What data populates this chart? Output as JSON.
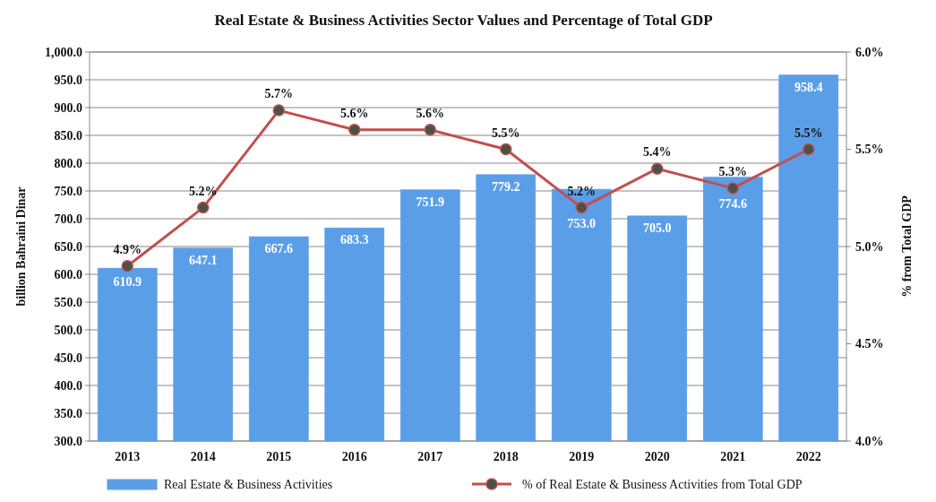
{
  "chart_data": {
    "type": "bar",
    "title": "Real Estate & Business Activities Sector Values and Percentage of Total GDP",
    "ylabel": "billion Bahraini Dinar",
    "y2label": "% from Total GDP",
    "categories": [
      "2013",
      "2014",
      "2015",
      "2016",
      "2017",
      "2018",
      "2019",
      "2020",
      "2021",
      "2022"
    ],
    "series": [
      {
        "name": "Real Estate & Business Activities",
        "color": "#5b9ee8",
        "values": [
          610.9,
          647.1,
          667.6,
          683.3,
          751.9,
          779.2,
          753.0,
          705.0,
          774.6,
          958.4
        ],
        "value_labels": [
          "610.9",
          "647.1",
          "667.6",
          "683.3",
          "751.9",
          "779.2",
          "753.0",
          "705.0",
          "774.6",
          "958.4"
        ]
      },
      {
        "name": "% of Real Estate & Business Activities from Total GDP",
        "type": "line",
        "axis": "y2",
        "color": "#c0504d",
        "marker": "circle",
        "values": [
          4.9,
          5.2,
          5.7,
          5.6,
          5.6,
          5.5,
          5.2,
          5.4,
          5.3,
          5.5
        ],
        "value_labels": [
          "4.9%",
          "5.2%",
          "5.7%",
          "5.6%",
          "5.6%",
          "5.5%",
          "5.2%",
          "5.4%",
          "5.3%",
          "5.5%"
        ]
      }
    ],
    "ylim": [
      300,
      1000
    ],
    "yticks": [
      {
        "value": 300,
        "label": "300.0"
      },
      {
        "value": 350,
        "label": "350.0"
      },
      {
        "value": 400,
        "label": "400.0"
      },
      {
        "value": 450,
        "label": "450.0"
      },
      {
        "value": 500,
        "label": "500.0"
      },
      {
        "value": 550,
        "label": "550.0"
      },
      {
        "value": 600,
        "label": "600.0"
      },
      {
        "value": 650,
        "label": "650.0"
      },
      {
        "value": 700,
        "label": "700.0"
      },
      {
        "value": 750,
        "label": "750.0"
      },
      {
        "value": 800,
        "label": "800.0"
      },
      {
        "value": 850,
        "label": "850.0"
      },
      {
        "value": 900,
        "label": "900.0"
      },
      {
        "value": 950,
        "label": "950.0"
      },
      {
        "value": 1000,
        "label": "1,000.0"
      }
    ],
    "y2lim": [
      4.0,
      6.0
    ],
    "y2ticks": [
      {
        "value": 4.0,
        "label": "4.0%"
      },
      {
        "value": 4.5,
        "label": "4.5%"
      },
      {
        "value": 5.0,
        "label": "5.0%"
      },
      {
        "value": 5.5,
        "label": "5.5%"
      },
      {
        "value": 6.0,
        "label": "6.0%"
      }
    ],
    "grid": "y",
    "legend": "bottom"
  }
}
